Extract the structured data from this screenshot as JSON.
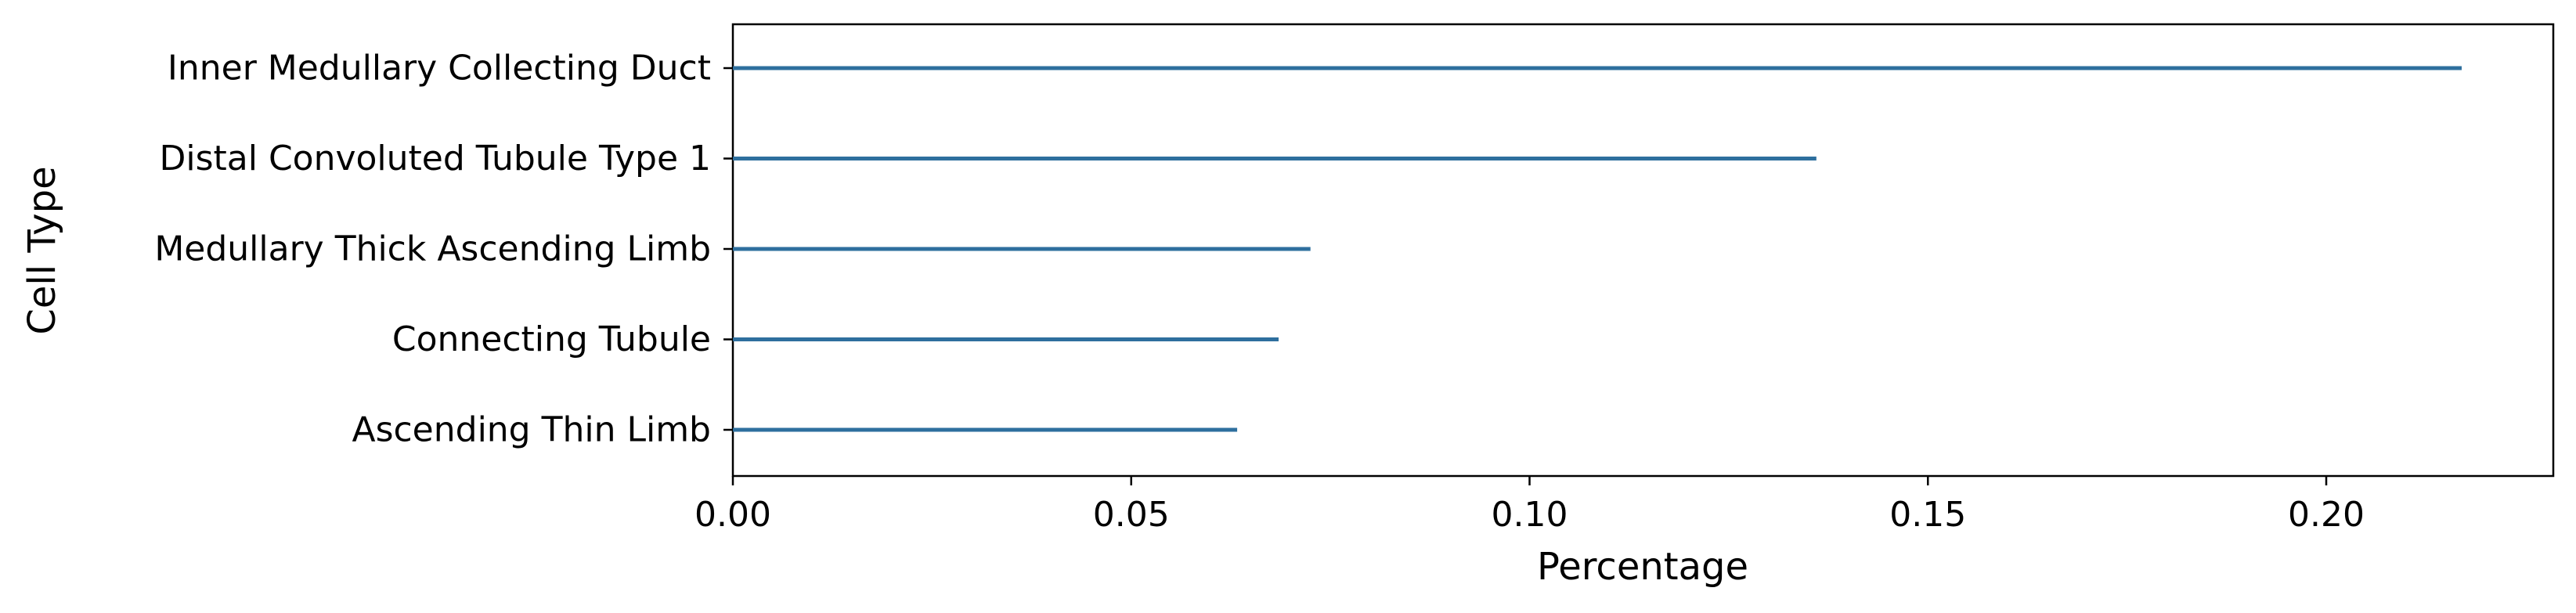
{
  "chart_data": {
    "type": "bar",
    "orientation": "horizontal",
    "categories": [
      "Inner Medullary Collecting Duct",
      "Distal Convoluted Tubule Type 1",
      "Medullary Thick Ascending Limb",
      "Connecting Tubule",
      "Ascending Thin Limb"
    ],
    "values": [
      0.217,
      0.136,
      0.0725,
      0.0685,
      0.0633
    ],
    "xlabel": "Percentage",
    "ylabel": "Cell Type",
    "xlim": [
      0,
      0.2285
    ],
    "xticks": [
      0,
      0.05,
      0.1,
      0.15,
      0.2
    ],
    "xtick_labels": [
      "0.00",
      "0.05",
      "0.10",
      "0.15",
      "0.20"
    ],
    "grid": false,
    "bar_color": "#2e6f9e"
  }
}
